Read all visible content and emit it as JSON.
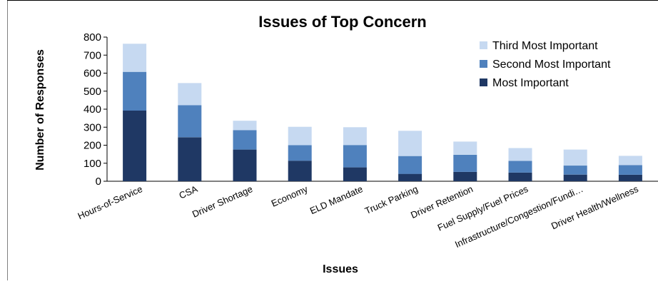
{
  "chart_data": {
    "type": "bar",
    "stacked": true,
    "title": "Issues of Top Concern",
    "xlabel": "Issues",
    "ylabel": "Number of Responses",
    "ylim": [
      0,
      800
    ],
    "yticks": [
      0,
      100,
      200,
      300,
      400,
      500,
      600,
      700,
      800
    ],
    "grid": false,
    "legend_position": "top-right",
    "categories": [
      "Hours-of-Service",
      "CSA",
      "Driver Shortage",
      "Economy",
      "ELD Mandate",
      "Truck Parking",
      "Driver Retention",
      "Fuel Supply/Fuel Prices",
      "Infrastructure/Congestion/Fundi…",
      "Driver Health/Wellness"
    ],
    "series": [
      {
        "name": "Most Important",
        "color": "#1f3864",
        "values": [
          392,
          244,
          176,
          114,
          77,
          41,
          52,
          48,
          37,
          36
        ]
      },
      {
        "name": "Second Most Important",
        "color": "#4f81bd",
        "values": [
          215,
          178,
          108,
          86,
          124,
          99,
          95,
          65,
          50,
          54
        ]
      },
      {
        "name": "Third Most Important",
        "color": "#c6d9f1",
        "values": [
          156,
          123,
          52,
          102,
          99,
          140,
          73,
          71,
          89,
          51
        ]
      }
    ]
  }
}
